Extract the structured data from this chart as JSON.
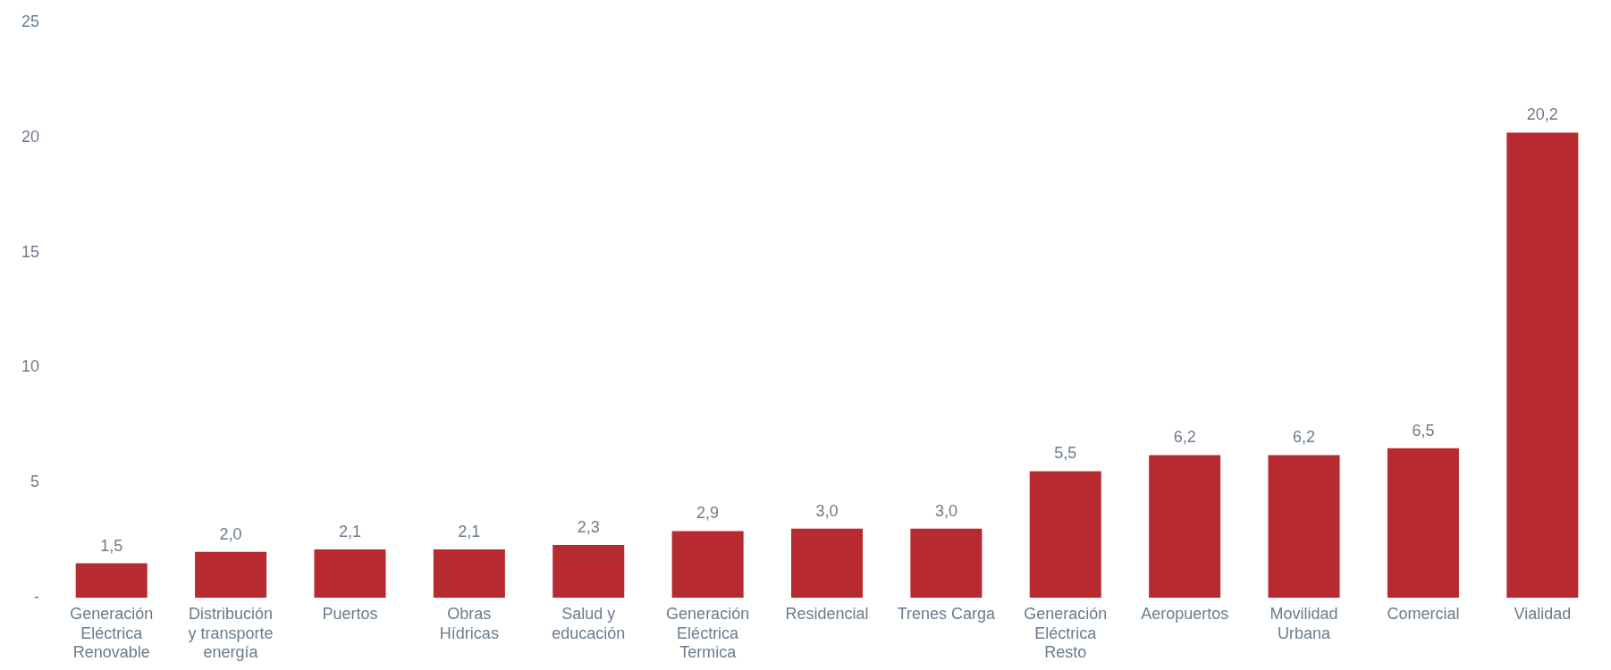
{
  "chart_data": {
    "type": "bar",
    "categories": [
      "Generación Eléctrica Renovable",
      "Distribución y transporte energía",
      "Puertos",
      "Obras Hídricas",
      "Salud y educación",
      "Generación Eléctrica Termica",
      "Residencial",
      "Trenes Carga",
      "Generación Eléctrica Resto",
      "Aeropuertos",
      "Movilidad Urbana",
      "Comercial",
      "Vialidad"
    ],
    "values": [
      1.5,
      2.0,
      2.1,
      2.1,
      2.3,
      2.9,
      3.0,
      3.0,
      5.5,
      6.2,
      6.2,
      6.5,
      20.2
    ],
    "value_labels": [
      "1,5",
      "2,0",
      "2,1",
      "2,1",
      "2,3",
      "2,9",
      "3,0",
      "3,0",
      "5,5",
      "6,2",
      "6,2",
      "6,5",
      "20,2"
    ],
    "color": "#b72a30",
    "ylim": [
      0,
      25
    ],
    "yticks": [
      {
        "value": 0,
        "label": "-"
      },
      5,
      10,
      15,
      20,
      25
    ],
    "grid": false
  }
}
